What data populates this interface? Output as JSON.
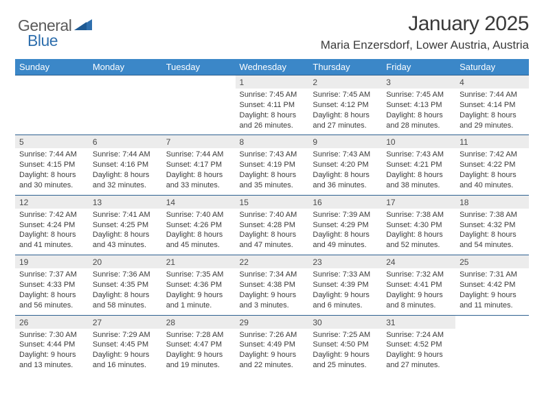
{
  "brand": {
    "name1": "General",
    "name2": "Blue"
  },
  "title": "January 2025",
  "subtitle": "Maria Enzersdorf, Lower Austria, Austria",
  "colors": {
    "header_bg": "#3b87c8",
    "header_text": "#ffffff",
    "daynum_bg": "#ececec",
    "row_border": "#2b5f8f",
    "body_text": "#3a3a3a",
    "brand_gray": "#5a5a5a",
    "brand_blue": "#2f6fad"
  },
  "weekdays": [
    "Sunday",
    "Monday",
    "Tuesday",
    "Wednesday",
    "Thursday",
    "Friday",
    "Saturday"
  ],
  "weeks": [
    [
      null,
      null,
      null,
      {
        "n": "1",
        "sr": "7:45 AM",
        "ss": "4:11 PM",
        "dl": "8 hours and 26 minutes."
      },
      {
        "n": "2",
        "sr": "7:45 AM",
        "ss": "4:12 PM",
        "dl": "8 hours and 27 minutes."
      },
      {
        "n": "3",
        "sr": "7:45 AM",
        "ss": "4:13 PM",
        "dl": "8 hours and 28 minutes."
      },
      {
        "n": "4",
        "sr": "7:44 AM",
        "ss": "4:14 PM",
        "dl": "8 hours and 29 minutes."
      }
    ],
    [
      {
        "n": "5",
        "sr": "7:44 AM",
        "ss": "4:15 PM",
        "dl": "8 hours and 30 minutes."
      },
      {
        "n": "6",
        "sr": "7:44 AM",
        "ss": "4:16 PM",
        "dl": "8 hours and 32 minutes."
      },
      {
        "n": "7",
        "sr": "7:44 AM",
        "ss": "4:17 PM",
        "dl": "8 hours and 33 minutes."
      },
      {
        "n": "8",
        "sr": "7:43 AM",
        "ss": "4:19 PM",
        "dl": "8 hours and 35 minutes."
      },
      {
        "n": "9",
        "sr": "7:43 AM",
        "ss": "4:20 PM",
        "dl": "8 hours and 36 minutes."
      },
      {
        "n": "10",
        "sr": "7:43 AM",
        "ss": "4:21 PM",
        "dl": "8 hours and 38 minutes."
      },
      {
        "n": "11",
        "sr": "7:42 AM",
        "ss": "4:22 PM",
        "dl": "8 hours and 40 minutes."
      }
    ],
    [
      {
        "n": "12",
        "sr": "7:42 AM",
        "ss": "4:24 PM",
        "dl": "8 hours and 41 minutes."
      },
      {
        "n": "13",
        "sr": "7:41 AM",
        "ss": "4:25 PM",
        "dl": "8 hours and 43 minutes."
      },
      {
        "n": "14",
        "sr": "7:40 AM",
        "ss": "4:26 PM",
        "dl": "8 hours and 45 minutes."
      },
      {
        "n": "15",
        "sr": "7:40 AM",
        "ss": "4:28 PM",
        "dl": "8 hours and 47 minutes."
      },
      {
        "n": "16",
        "sr": "7:39 AM",
        "ss": "4:29 PM",
        "dl": "8 hours and 49 minutes."
      },
      {
        "n": "17",
        "sr": "7:38 AM",
        "ss": "4:30 PM",
        "dl": "8 hours and 52 minutes."
      },
      {
        "n": "18",
        "sr": "7:38 AM",
        "ss": "4:32 PM",
        "dl": "8 hours and 54 minutes."
      }
    ],
    [
      {
        "n": "19",
        "sr": "7:37 AM",
        "ss": "4:33 PM",
        "dl": "8 hours and 56 minutes."
      },
      {
        "n": "20",
        "sr": "7:36 AM",
        "ss": "4:35 PM",
        "dl": "8 hours and 58 minutes."
      },
      {
        "n": "21",
        "sr": "7:35 AM",
        "ss": "4:36 PM",
        "dl": "9 hours and 1 minute."
      },
      {
        "n": "22",
        "sr": "7:34 AM",
        "ss": "4:38 PM",
        "dl": "9 hours and 3 minutes."
      },
      {
        "n": "23",
        "sr": "7:33 AM",
        "ss": "4:39 PM",
        "dl": "9 hours and 6 minutes."
      },
      {
        "n": "24",
        "sr": "7:32 AM",
        "ss": "4:41 PM",
        "dl": "9 hours and 8 minutes."
      },
      {
        "n": "25",
        "sr": "7:31 AM",
        "ss": "4:42 PM",
        "dl": "9 hours and 11 minutes."
      }
    ],
    [
      {
        "n": "26",
        "sr": "7:30 AM",
        "ss": "4:44 PM",
        "dl": "9 hours and 13 minutes."
      },
      {
        "n": "27",
        "sr": "7:29 AM",
        "ss": "4:45 PM",
        "dl": "9 hours and 16 minutes."
      },
      {
        "n": "28",
        "sr": "7:28 AM",
        "ss": "4:47 PM",
        "dl": "9 hours and 19 minutes."
      },
      {
        "n": "29",
        "sr": "7:26 AM",
        "ss": "4:49 PM",
        "dl": "9 hours and 22 minutes."
      },
      {
        "n": "30",
        "sr": "7:25 AM",
        "ss": "4:50 PM",
        "dl": "9 hours and 25 minutes."
      },
      {
        "n": "31",
        "sr": "7:24 AM",
        "ss": "4:52 PM",
        "dl": "9 hours and 27 minutes."
      },
      null
    ]
  ],
  "labels": {
    "sunrise": "Sunrise: ",
    "sunset": "Sunset: ",
    "daylight": "Daylight: "
  }
}
